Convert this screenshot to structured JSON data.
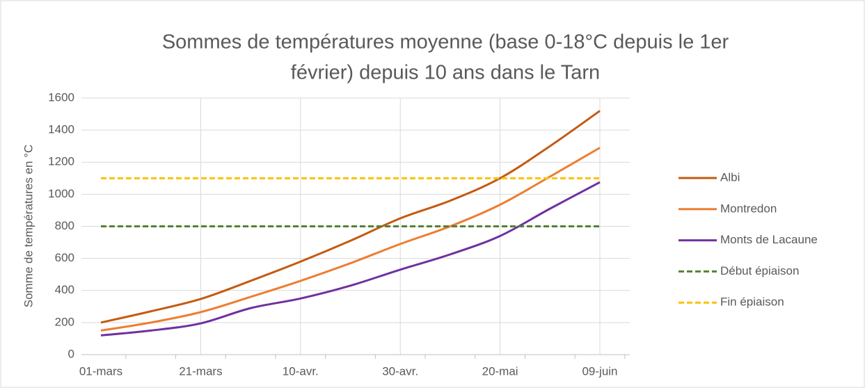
{
  "chart_data": {
    "type": "line",
    "title": "Sommes de températures moyenne (base 0-18°C depuis le 1er février)  depuis 10 ans dans le Tarn",
    "title_lines": [
      "Sommes de températures moyenne (base 0-18°C depuis le 1er",
      "février)  depuis 10 ans dans le Tarn"
    ],
    "y_label": "Somme de températures  en °C",
    "categories": [
      "01-mars",
      null,
      "21-mars",
      null,
      "10-avr.",
      null,
      "30-avr.",
      null,
      "20-mai",
      null,
      "09-juin"
    ],
    "series": [
      {
        "name": "Albi",
        "color": "#c55a11",
        "style": "solid",
        "values": [
          200,
          270,
          347,
          460,
          580,
          710,
          850,
          960,
          1100,
          1300,
          1520
        ]
      },
      {
        "name": "Montredon",
        "color": "#ed7d31",
        "style": "solid",
        "values": [
          150,
          200,
          265,
          360,
          460,
          570,
          690,
          800,
          935,
          1110,
          1290
        ]
      },
      {
        "name": "Monts de Lacaune",
        "color": "#7030a0",
        "style": "solid",
        "values": [
          120,
          150,
          195,
          290,
          350,
          430,
          530,
          625,
          740,
          910,
          1075
        ]
      },
      {
        "name": "Début épiaison",
        "color": "#548235",
        "style": "dashed",
        "values": [
          800,
          800,
          800,
          800,
          800,
          800,
          800,
          800,
          800,
          800,
          800
        ]
      },
      {
        "name": "Fin épiaison",
        "color": "#ffc000",
        "style": "dashed",
        "values": [
          1100,
          1100,
          1100,
          1100,
          1100,
          1100,
          1100,
          1100,
          1100,
          1100,
          1100
        ]
      }
    ],
    "ylim": [
      0,
      1600
    ],
    "yticks": [
      0,
      200,
      400,
      600,
      800,
      1000,
      1200,
      1400,
      1600
    ],
    "grid": true,
    "legend": "right"
  }
}
